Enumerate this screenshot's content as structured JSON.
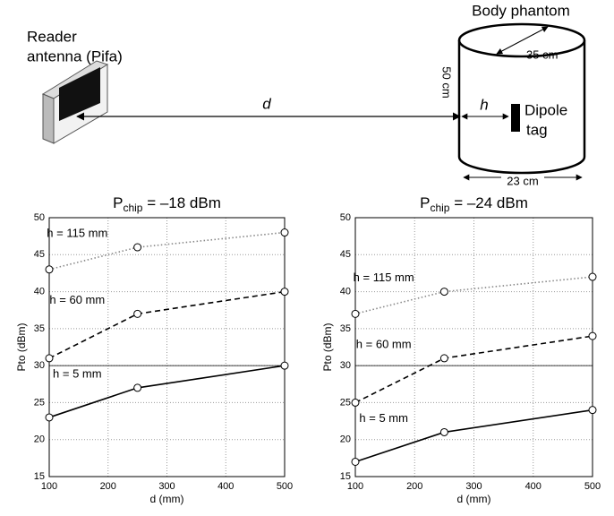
{
  "diagram": {
    "reader_label": [
      "Reader",
      "antenna (Pifa)"
    ],
    "phantom_label": "Body phantom",
    "distance_label": "d",
    "depth_label": "h",
    "tag_label": [
      "Dipole",
      "tag"
    ],
    "height_label": "50 cm",
    "diameter_top_label": "35 cm",
    "diameter_bottom_label": "23 cm"
  },
  "chart_data": [
    {
      "type": "line",
      "title": {
        "main": "P",
        "sub": "chip",
        "rest": " = –18 dBm"
      },
      "xlabel": "d (mm)",
      "ylabel": "Pto (dBm)",
      "x": [
        100,
        250,
        500
      ],
      "xlim": [
        100,
        500
      ],
      "xticks": [
        100,
        200,
        300,
        400,
        500
      ],
      "ylim": [
        15,
        50
      ],
      "yticks": [
        15,
        20,
        25,
        30,
        35,
        40,
        45,
        50
      ],
      "grid": true,
      "hline": 30,
      "series": [
        {
          "name": "h = 115 mm",
          "color": "#888888",
          "style": "dotted",
          "values": [
            43,
            46,
            48
          ]
        },
        {
          "name": "h = 60 mm",
          "color": "#000000",
          "style": "dashed",
          "values": [
            31,
            37,
            40
          ]
        },
        {
          "name": "h = 5 mm",
          "color": "#000000",
          "style": "solid",
          "values": [
            23,
            27,
            30
          ]
        }
      ]
    },
    {
      "type": "line",
      "title": {
        "main": "P",
        "sub": "chip",
        "rest": " = –24 dBm"
      },
      "xlabel": "d (mm)",
      "ylabel": "Pto (dBm)",
      "x": [
        100,
        250,
        500
      ],
      "xlim": [
        100,
        500
      ],
      "xticks": [
        100,
        200,
        300,
        400,
        500
      ],
      "ylim": [
        15,
        50
      ],
      "yticks": [
        15,
        20,
        25,
        30,
        35,
        40,
        45,
        50
      ],
      "grid": true,
      "hline": 30,
      "series": [
        {
          "name": "h = 115 mm",
          "color": "#888888",
          "style": "dotted",
          "values": [
            37,
            40,
            42
          ]
        },
        {
          "name": "h = 60 mm",
          "color": "#000000",
          "style": "dashed",
          "values": [
            25,
            31,
            34
          ]
        },
        {
          "name": "h = 5 mm",
          "color": "#000000",
          "style": "solid",
          "values": [
            17,
            21,
            24
          ]
        }
      ]
    }
  ]
}
